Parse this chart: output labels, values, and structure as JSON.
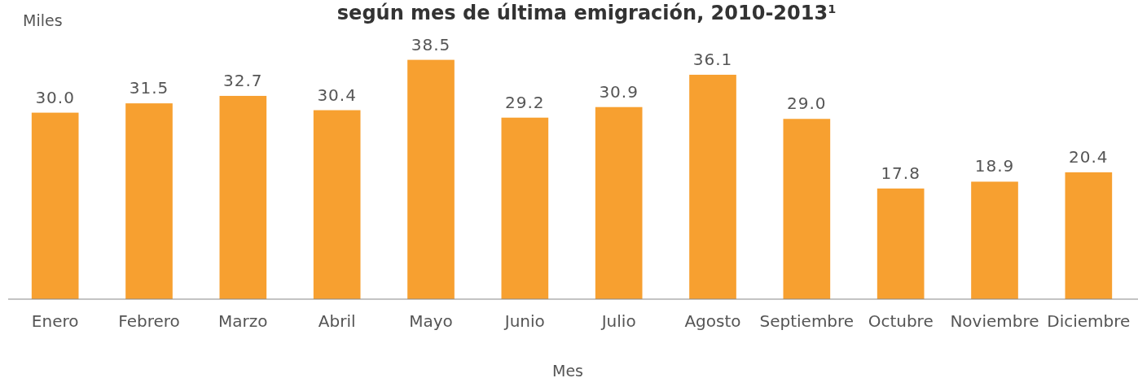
{
  "chart_data": {
    "type": "bar",
    "title": "según mes de última emigración, 2010-2013$^{1}$",
    "ylabel": "Miles",
    "xlabel": "Mes",
    "categories": [
      "Enero",
      "Febrero",
      "Marzo",
      "Abril",
      "Mayo",
      "Junio",
      "Julio",
      "Agosto",
      "Septiembre",
      "Octubre",
      "Noviembre",
      "Diciembre"
    ],
    "values": [
      30.0,
      31.5,
      32.7,
      30.4,
      38.5,
      29.2,
      30.9,
      36.1,
      29.0,
      17.8,
      18.9,
      20.4
    ],
    "value_labels": [
      "30.0",
      "31.5",
      "32.7",
      "30.4",
      "38.5",
      "29.2",
      "30.9",
      "36.1",
      "29.0",
      "17.8",
      "18.9",
      "20.4"
    ],
    "color": "#f7a030"
  }
}
